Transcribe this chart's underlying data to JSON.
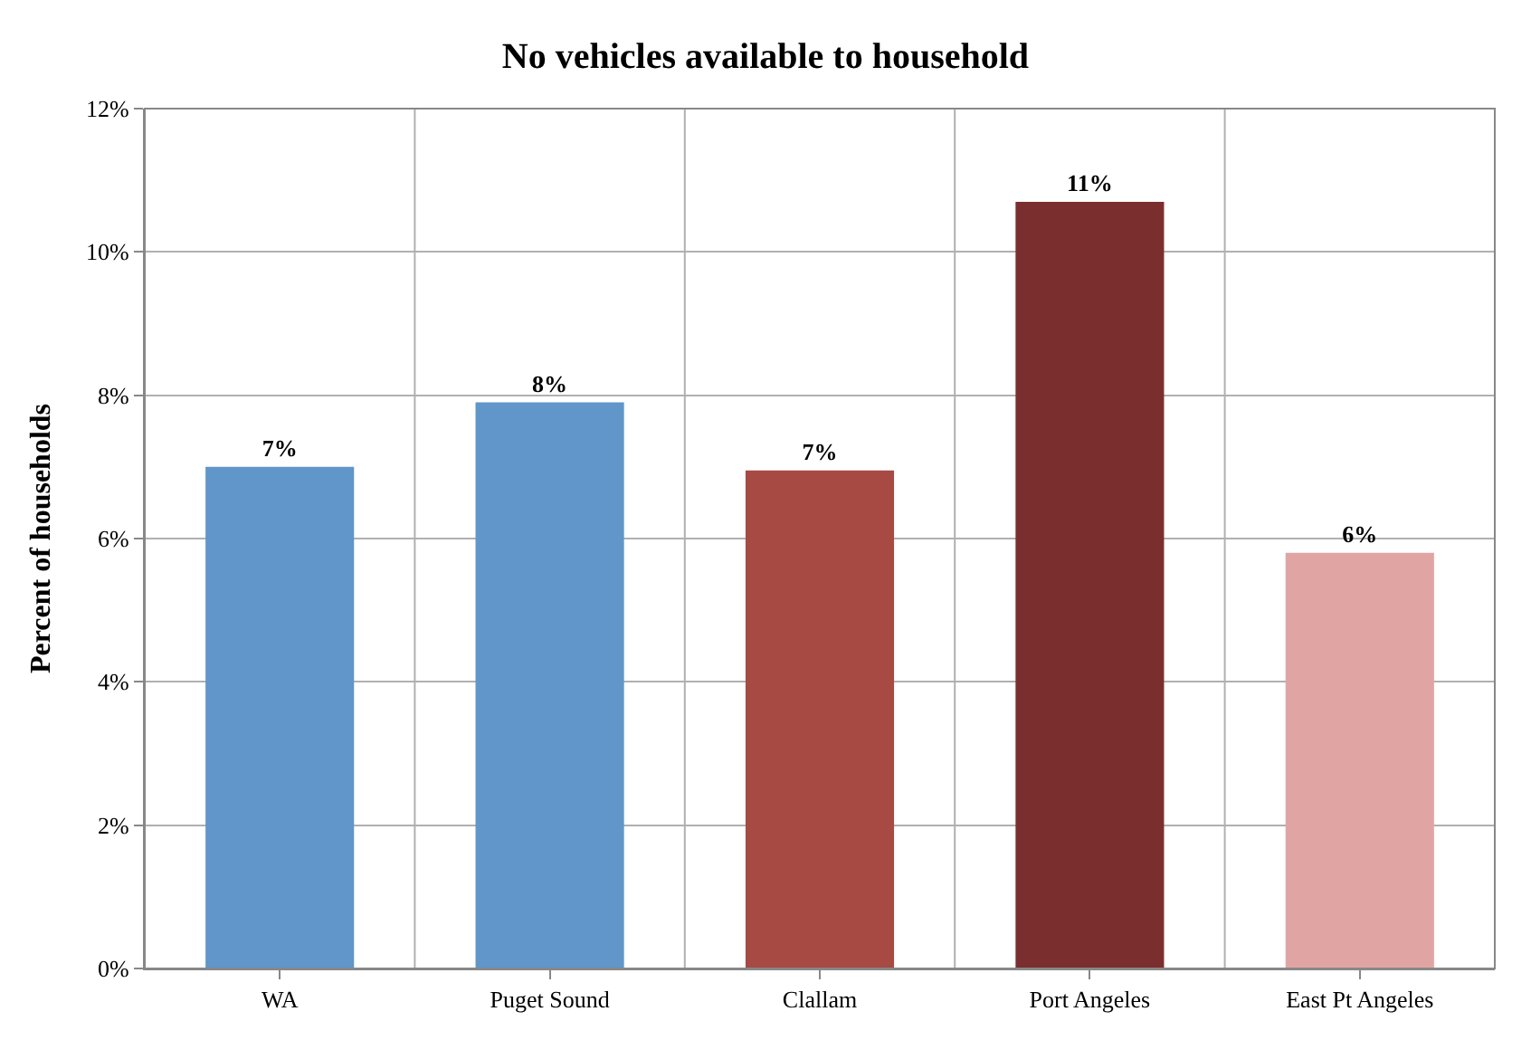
{
  "chart_data": {
    "type": "bar",
    "title": "No vehicles available to household",
    "ylabel": "Percent of households",
    "categories": [
      "WA",
      "Puget Sound",
      "Clallam",
      "Port Angeles",
      "East Pt Angeles"
    ],
    "values": [
      7.0,
      7.9,
      6.95,
      10.7,
      5.8
    ],
    "colors": [
      "#6096c9",
      "#6096c9",
      "#a64a43",
      "#7a2f2e",
      "#e0a5a3"
    ],
    "value_labels": [
      "7%",
      "8%",
      "7%",
      "11%",
      "6%"
    ],
    "ylim": [
      0,
      12
    ],
    "yticks": [
      {
        "value": 0,
        "label": "0%"
      },
      {
        "value": 2,
        "label": "2%"
      },
      {
        "value": 4,
        "label": "4%"
      },
      {
        "value": 6,
        "label": "6%"
      },
      {
        "value": 8,
        "label": "8%"
      },
      {
        "value": 10,
        "label": "10%"
      },
      {
        "value": 12,
        "label": "12%"
      }
    ],
    "grid": true
  }
}
